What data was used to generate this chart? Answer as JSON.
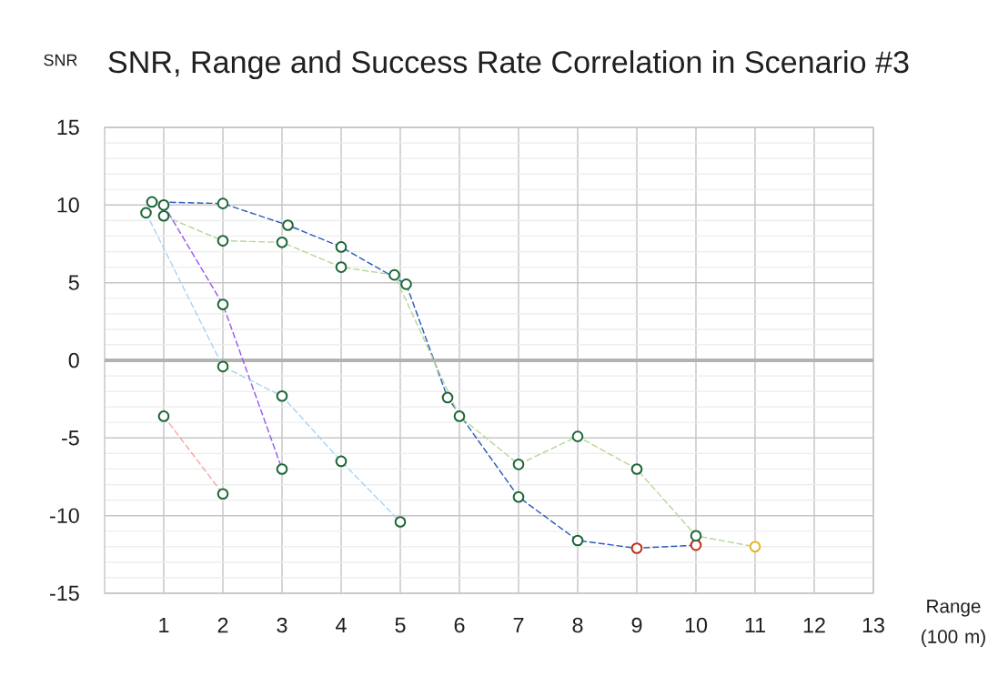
{
  "chart_data": {
    "type": "line",
    "title": "SNR, Range and Success Rate Correlation in Scenario #3",
    "xlabel": "Range (100 m)",
    "ylabel": "SNR",
    "xlim": [
      0,
      13
    ],
    "ylim": [
      -15,
      15
    ],
    "xticks": [
      1,
      2,
      3,
      4,
      5,
      6,
      7,
      8,
      9,
      10,
      11,
      12,
      13
    ],
    "yticks": [
      -15,
      {
        "value": -14,
        "label": null
      },
      {
        "value": -13,
        "label": null
      },
      {
        "value": -12,
        "label": null
      },
      {
        "value": -11,
        "label": null
      },
      -10,
      {
        "value": -9,
        "label": null
      },
      {
        "value": -8,
        "label": null
      },
      {
        "value": -7,
        "label": null
      },
      {
        "value": -6,
        "label": null
      },
      -5,
      {
        "value": -4,
        "label": null
      },
      {
        "value": -3,
        "label": null
      },
      {
        "value": -2,
        "label": null
      },
      {
        "value": -1,
        "label": null
      },
      0,
      {
        "value": 1,
        "label": null
      },
      {
        "value": 2,
        "label": null
      },
      {
        "value": 3,
        "label": null
      },
      {
        "value": 4,
        "label": null
      },
      5,
      {
        "value": 6,
        "label": null
      },
      {
        "value": 7,
        "label": null
      },
      {
        "value": 8,
        "label": null
      },
      {
        "value": 9,
        "label": null
      },
      10,
      {
        "value": 11,
        "label": null
      },
      {
        "value": 12,
        "label": null
      },
      {
        "value": 13,
        "label": null
      },
      {
        "value": 14,
        "label": null
      },
      15
    ],
    "grid": true,
    "marker": "circle",
    "line_style": "dashed",
    "series": [
      {
        "color": "#2b5fb8",
        "x": [
          0.8,
          2,
          3.1,
          4,
          5.1,
          5.8,
          7,
          8,
          9,
          10
        ],
        "values": [
          10.2,
          10.1,
          8.7,
          7.3,
          4.9,
          -2.4,
          -8.8,
          -11.6,
          -12.1,
          -11.9
        ],
        "colors": [
          "#1a6634",
          "#1a6634",
          "#1a6634",
          "#1a6634",
          "#1a6634",
          "#1a6634",
          "#1a6634",
          "#1a6634",
          "#c02d1c",
          "#c02d1c"
        ]
      },
      {
        "color": "#b6d99b",
        "x": [
          1,
          2,
          3,
          4,
          4.9,
          6,
          7,
          8,
          9,
          10,
          11
        ],
        "values": [
          9.3,
          7.7,
          7.6,
          6.0,
          5.5,
          -3.6,
          -6.7,
          -4.9,
          -7.0,
          -11.3,
          -12.0
        ],
        "colors": [
          "#1a6634",
          "#1a6634",
          "#1a6634",
          "#1a6634",
          "#1a6634",
          "#1a6634",
          "#1a6634",
          "#1a6634",
          "#1a6634",
          "#1a6634",
          "#e8b322"
        ]
      },
      {
        "color": "#9a5cf0",
        "x": [
          1.0,
          2,
          3
        ],
        "values": [
          10.0,
          3.6,
          -7.0
        ],
        "colors": [
          "#1a6634",
          "#1a6634",
          "#1a6634"
        ]
      },
      {
        "color": "#a9d5f5",
        "x": [
          0.7,
          2,
          3,
          4,
          5
        ],
        "values": [
          9.5,
          -0.4,
          -2.3,
          -6.5,
          -10.4
        ],
        "colors": [
          "#1a6634",
          "#1a6634",
          "#1a6634",
          "#1a6634",
          "#1a6634"
        ]
      },
      {
        "color": "#f5a9a6",
        "x": [
          1,
          2
        ],
        "values": [
          -3.6,
          -8.6
        ],
        "colors": [
          "#1a6634",
          "#1a6634"
        ]
      }
    ]
  }
}
